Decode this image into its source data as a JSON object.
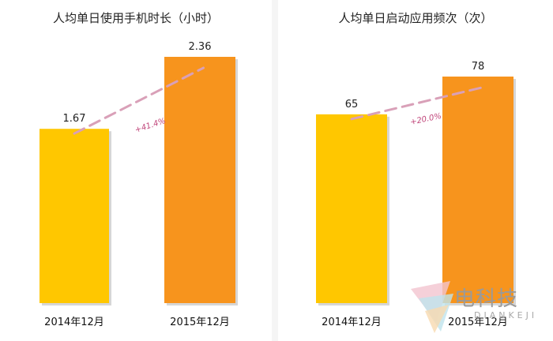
{
  "chart_data": [
    {
      "type": "bar",
      "title": "人均单日使用手机时长（小时）",
      "categories": [
        "2014年12月",
        "2015年12月"
      ],
      "values": [
        1.67,
        2.36
      ],
      "value_labels": [
        "1.67",
        "2.36"
      ],
      "growth_label": "+41.4%",
      "bar_colors": [
        "#ffc700",
        "#f7941d"
      ],
      "trend_line_color": "#d9a0b8"
    },
    {
      "type": "bar",
      "title": "人均单日启动应用频次（次）",
      "categories": [
        "2014年12月",
        "2015年12月"
      ],
      "values": [
        65,
        78
      ],
      "value_labels": [
        "65",
        "78"
      ],
      "growth_label": "+20.0%",
      "bar_colors": [
        "#ffc700",
        "#f7941d"
      ],
      "trend_line_color": "#d9a0b8"
    }
  ],
  "watermark": {
    "text": "电科技",
    "sub": "DIANKEJI"
  }
}
